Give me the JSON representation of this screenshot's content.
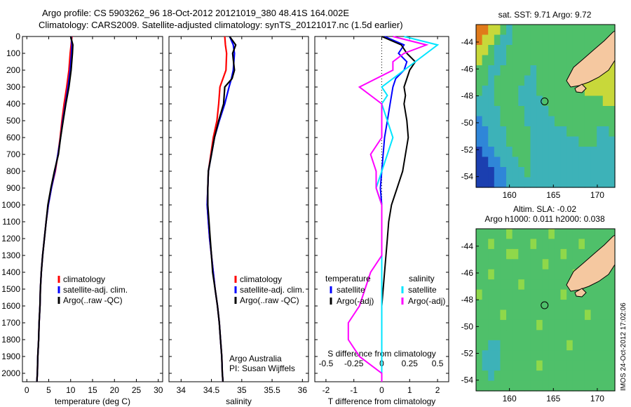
{
  "header": {
    "line1": "Argo profile: CS 5903262_96 18-Oct-2012 20121019_380 48.41S 164.002E",
    "line2": "Climatology: CARS2009. Satellite-adjusted climatology: synTS_20121017.nc (1.5d earlier)"
  },
  "side_stamp": "IMOS 24-Oct-2012 17:02:06",
  "colors": {
    "climatology": "#ff0000",
    "satellite": "#0000ff",
    "argo": "#000000",
    "sal_satellite": "#00e5ff",
    "sal_argo": "#ff00ff",
    "land": "#f5c8a0"
  },
  "chart_data": [
    {
      "type": "line",
      "panel": "temperature",
      "xlabel": "temperature (deg C)",
      "ylabel": "",
      "xlim": [
        -1,
        31
      ],
      "ylim": [
        2050,
        0
      ],
      "xticks": [
        0,
        5,
        10,
        15,
        20,
        25,
        30
      ],
      "yticks": [
        0,
        100,
        200,
        300,
        400,
        500,
        600,
        700,
        800,
        900,
        1000,
        1100,
        1200,
        1300,
        1400,
        1500,
        1600,
        1700,
        1800,
        1900,
        2000
      ],
      "depth": [
        0,
        50,
        100,
        200,
        300,
        400,
        500,
        600,
        700,
        800,
        900,
        1000,
        1100,
        1200,
        1300,
        1400,
        1500,
        1600,
        1700,
        1800,
        1900,
        2000,
        2050
      ],
      "series": [
        {
          "name": "climatology",
          "color": "#ff0000",
          "values": [
            10.3,
            10.1,
            9.9,
            9.6,
            9.1,
            8.5,
            8.0,
            7.6,
            7.1,
            6.5,
            5.6,
            4.9,
            4.4,
            4.0,
            3.6,
            3.3,
            3.1,
            3.0,
            2.8,
            2.7,
            2.5,
            2.4,
            2.3
          ]
        },
        {
          "name": "satellite-adj. clim.",
          "color": "#0000ff",
          "values": [
            10.1,
            10.3,
            10.2,
            9.9,
            9.4,
            8.8,
            8.2,
            7.7,
            7.1,
            6.4,
            5.6,
            4.9,
            4.4,
            4.0,
            3.6,
            3.3,
            3.1,
            3.0,
            2.8,
            2.7,
            2.5,
            2.4,
            2.3
          ]
        },
        {
          "name": "Argo(..raw -QC)",
          "color": "#000000",
          "values": [
            10.0,
            10.5,
            10.4,
            10.1,
            9.6,
            8.9,
            8.3,
            7.7,
            7.2,
            6.3,
            5.5,
            4.8,
            4.4,
            4.0,
            3.6,
            3.3,
            3.1,
            3.0,
            2.8,
            2.7,
            2.5,
            2.4,
            2.3
          ]
        }
      ],
      "legend": [
        "climatology",
        "satellite-adj. clim.",
        "Argo(..raw -QC)"
      ],
      "legend_position": "lower-center"
    },
    {
      "type": "line",
      "panel": "salinity",
      "xlabel": "salinity",
      "xlim": [
        33.8,
        36.1
      ],
      "ylim": [
        2050,
        0
      ],
      "xticks": [
        34,
        34.5,
        35,
        35.5,
        36
      ],
      "depth": [
        0,
        50,
        100,
        200,
        250,
        300,
        400,
        500,
        600,
        700,
        800,
        900,
        1000,
        1100,
        1200,
        1300,
        1400,
        1500,
        1600,
        1700,
        1800,
        1900,
        2000,
        2050
      ],
      "series": [
        {
          "name": "climatology",
          "color": "#ff0000",
          "values": [
            34.72,
            34.73,
            34.75,
            34.74,
            34.69,
            34.64,
            34.62,
            34.59,
            34.53,
            34.49,
            34.45,
            34.44,
            34.43,
            34.45,
            34.47,
            34.5,
            34.53,
            34.56,
            34.6,
            34.63,
            34.65,
            34.67,
            34.68,
            34.69
          ]
        },
        {
          "name": "satellite-adj. clim.",
          "color": "#0000ff",
          "values": [
            34.8,
            34.86,
            34.88,
            34.86,
            34.83,
            34.79,
            34.72,
            34.63,
            34.55,
            34.5,
            34.45,
            34.44,
            34.43,
            34.45,
            34.47,
            34.5,
            34.53,
            34.56,
            34.6,
            34.63,
            34.65,
            34.67,
            34.68,
            34.69
          ]
        },
        {
          "name": "Argo(..raw -QC)",
          "color": "#000000",
          "values": [
            34.8,
            34.9,
            34.85,
            34.88,
            34.84,
            34.72,
            34.7,
            34.62,
            34.55,
            34.5,
            34.45,
            34.44,
            34.44,
            34.46,
            34.48,
            34.5,
            34.52,
            34.56,
            34.6,
            34.63,
            34.65,
            34.67,
            34.68,
            34.69
          ]
        }
      ],
      "legend": [
        "climatology",
        "satellite-adj. clim.",
        "Argo(..raw -QC)"
      ],
      "legend_position": "lower-center",
      "annotation": [
        "Argo Australia",
        "PI: Susan Wijffels"
      ]
    },
    {
      "type": "line",
      "panel": "difference",
      "xlabel": "T difference from climatology",
      "xlabel_secondary": "S difference from climatology",
      "xlim": [
        -2.4,
        2.4
      ],
      "ylim": [
        2050,
        0
      ],
      "xticks_T": [
        -2,
        -1,
        0,
        1,
        2
      ],
      "xticks_S": [
        -0.5,
        -0.25,
        0,
        0.25,
        0.5
      ],
      "depth": [
        0,
        50,
        100,
        150,
        200,
        250,
        300,
        350,
        400,
        500,
        600,
        700,
        800,
        900,
        1000,
        1100,
        1200,
        1300,
        1400,
        1500,
        1600,
        1700,
        1800,
        1900,
        2000,
        2050
      ],
      "series": [
        {
          "name": "temperature satellite",
          "color": "#0000ff",
          "values": [
            0.1,
            0.8,
            0.6,
            0.9,
            0.8,
            0.5,
            0.4,
            0.35,
            0.3,
            0.2,
            0.1,
            0.05,
            0.0,
            -0.05,
            0.0,
            0.0,
            0.0,
            0.0,
            0.0,
            0.0,
            0.0,
            0.0,
            0.0,
            0.0,
            0.0,
            0.0
          ]
        },
        {
          "name": "temperature Argo(-adj)",
          "color": "#000000",
          "values": [
            0.0,
            0.7,
            0.9,
            1.2,
            1.0,
            0.9,
            0.8,
            0.85,
            0.8,
            0.9,
            0.95,
            0.85,
            0.75,
            0.55,
            0.35,
            0.25,
            0.2,
            0.15,
            0.1,
            0.05,
            0.0,
            0.0,
            0.0,
            0.0,
            0.0,
            0.0
          ]
        },
        {
          "name": "salinity satellite",
          "color": "#00e5ff",
          "values": [
            0.2,
            0.5,
            0.4,
            0.3,
            0.2,
            0.1,
            0.0,
            0.05,
            0.0,
            0.05,
            0.1,
            0.05,
            0.0,
            -0.05,
            0.0,
            0.0,
            0.0,
            0.0,
            0.0,
            0.0,
            0.0,
            0.0,
            0.0,
            0.0,
            0.0,
            0.0
          ]
        },
        {
          "name": "salinity Argo(-adj)",
          "color": "#ff00ff",
          "values": [
            0.1,
            0.4,
            0.2,
            0.1,
            0.1,
            -0.05,
            -0.2,
            -0.1,
            0.0,
            0.0,
            0.0,
            -0.1,
            -0.05,
            -0.05,
            0.0,
            0.0,
            0.0,
            0.0,
            -0.1,
            -0.15,
            -0.2,
            -0.3,
            -0.3,
            -0.2,
            0.0,
            0.0
          ]
        }
      ],
      "legend": {
        "temperature_header": "temperature",
        "salinity_header": "salinity",
        "entries": [
          {
            "label": "satellite",
            "color": "#0000ff",
            "column": "temperature"
          },
          {
            "label": "Argo(-adj)",
            "color": "#000000",
            "column": "temperature"
          },
          {
            "label": "satellite",
            "color": "#00e5ff",
            "column": "salinity"
          },
          {
            "label": "Argo(-adj)",
            "color": "#ff00ff",
            "column": "salinity"
          }
        ]
      }
    },
    {
      "type": "heatmap",
      "panel": "sst_map",
      "title": "sat. SST: 9.71  Argo: 9.72",
      "xticks": [
        160,
        165,
        170
      ],
      "yticks": [
        -44,
        -46,
        -48,
        -50,
        -52,
        -54
      ],
      "xlim": [
        156.2,
        172
      ],
      "ylim": [
        -54.8,
        -42.7
      ],
      "marker": {
        "lon": 164.0,
        "lat": -48.41
      }
    },
    {
      "type": "heatmap",
      "panel": "sla_map",
      "title": "Altim. SLA: -0.02",
      "subtitle": "Argo h1000: 0.011  h2000: 0.038",
      "xticks": [
        160,
        165,
        170
      ],
      "yticks": [
        -44,
        -46,
        -48,
        -50,
        -52,
        -54
      ],
      "xlim": [
        156.2,
        172
      ],
      "ylim": [
        -54.8,
        -42.7
      ],
      "marker": {
        "lon": 164.0,
        "lat": -48.41
      }
    }
  ]
}
